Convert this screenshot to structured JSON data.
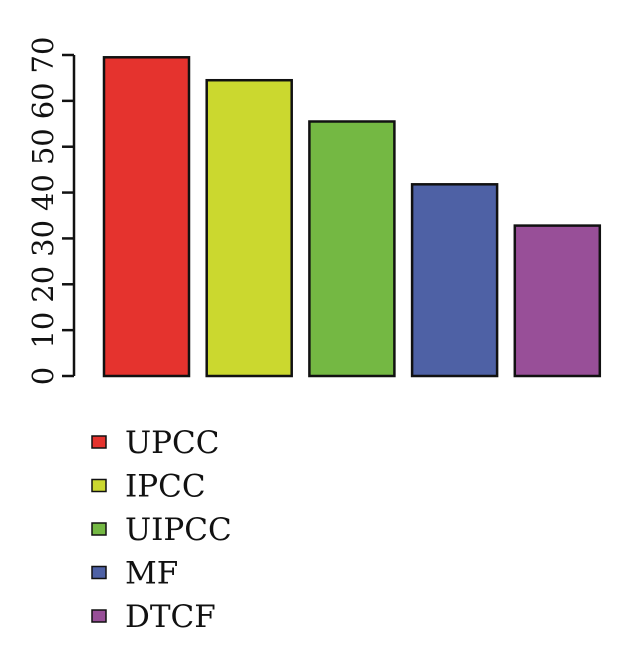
{
  "chart_data": {
    "type": "bar",
    "categories": [
      "UPCC",
      "IPCC",
      "UIPCC",
      "MF",
      "DTCF"
    ],
    "values": [
      69.5,
      64.5,
      55.5,
      41.8,
      32.8
    ],
    "colors": [
      "#e5332e",
      "#cbd82f",
      "#74b843",
      "#4e61a5",
      "#984f98"
    ],
    "title": "",
    "xlabel": "",
    "ylabel": "",
    "ylim": [
      0,
      70
    ],
    "yticks": [
      0,
      10,
      20,
      30,
      40,
      50,
      60,
      70
    ],
    "grid": false,
    "legend": {
      "placement": "bottom-left",
      "entries": [
        "UPCC",
        "IPCC",
        "UIPCC",
        "MF",
        "DTCF"
      ]
    }
  }
}
